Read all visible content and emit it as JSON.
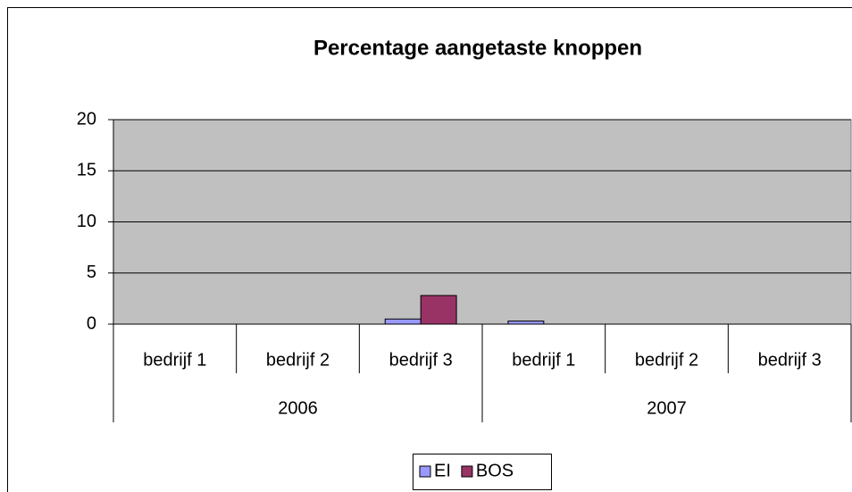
{
  "chart_data": {
    "type": "bar",
    "title": "Percentage aangetaste knoppen",
    "category_groups": [
      {
        "label": "2006",
        "categories": [
          "bedrijf 1",
          "bedrijf 2",
          "bedrijf 3"
        ]
      },
      {
        "label": "2007",
        "categories": [
          "bedrijf 1",
          "bedrijf 2",
          "bedrijf 3"
        ]
      }
    ],
    "series": [
      {
        "name": "EI",
        "color": "#9999ff",
        "values": [
          0,
          0,
          0.5,
          0.3,
          0,
          0
        ]
      },
      {
        "name": "BOS",
        "color": "#993366",
        "values": [
          0,
          0,
          2.8,
          0,
          0,
          0
        ]
      }
    ],
    "ylim": [
      0,
      20
    ],
    "yticks": [
      0,
      5,
      10,
      15,
      20
    ],
    "grid": true,
    "plot_background": "#c0c0c0",
    "legend": "bottom"
  }
}
